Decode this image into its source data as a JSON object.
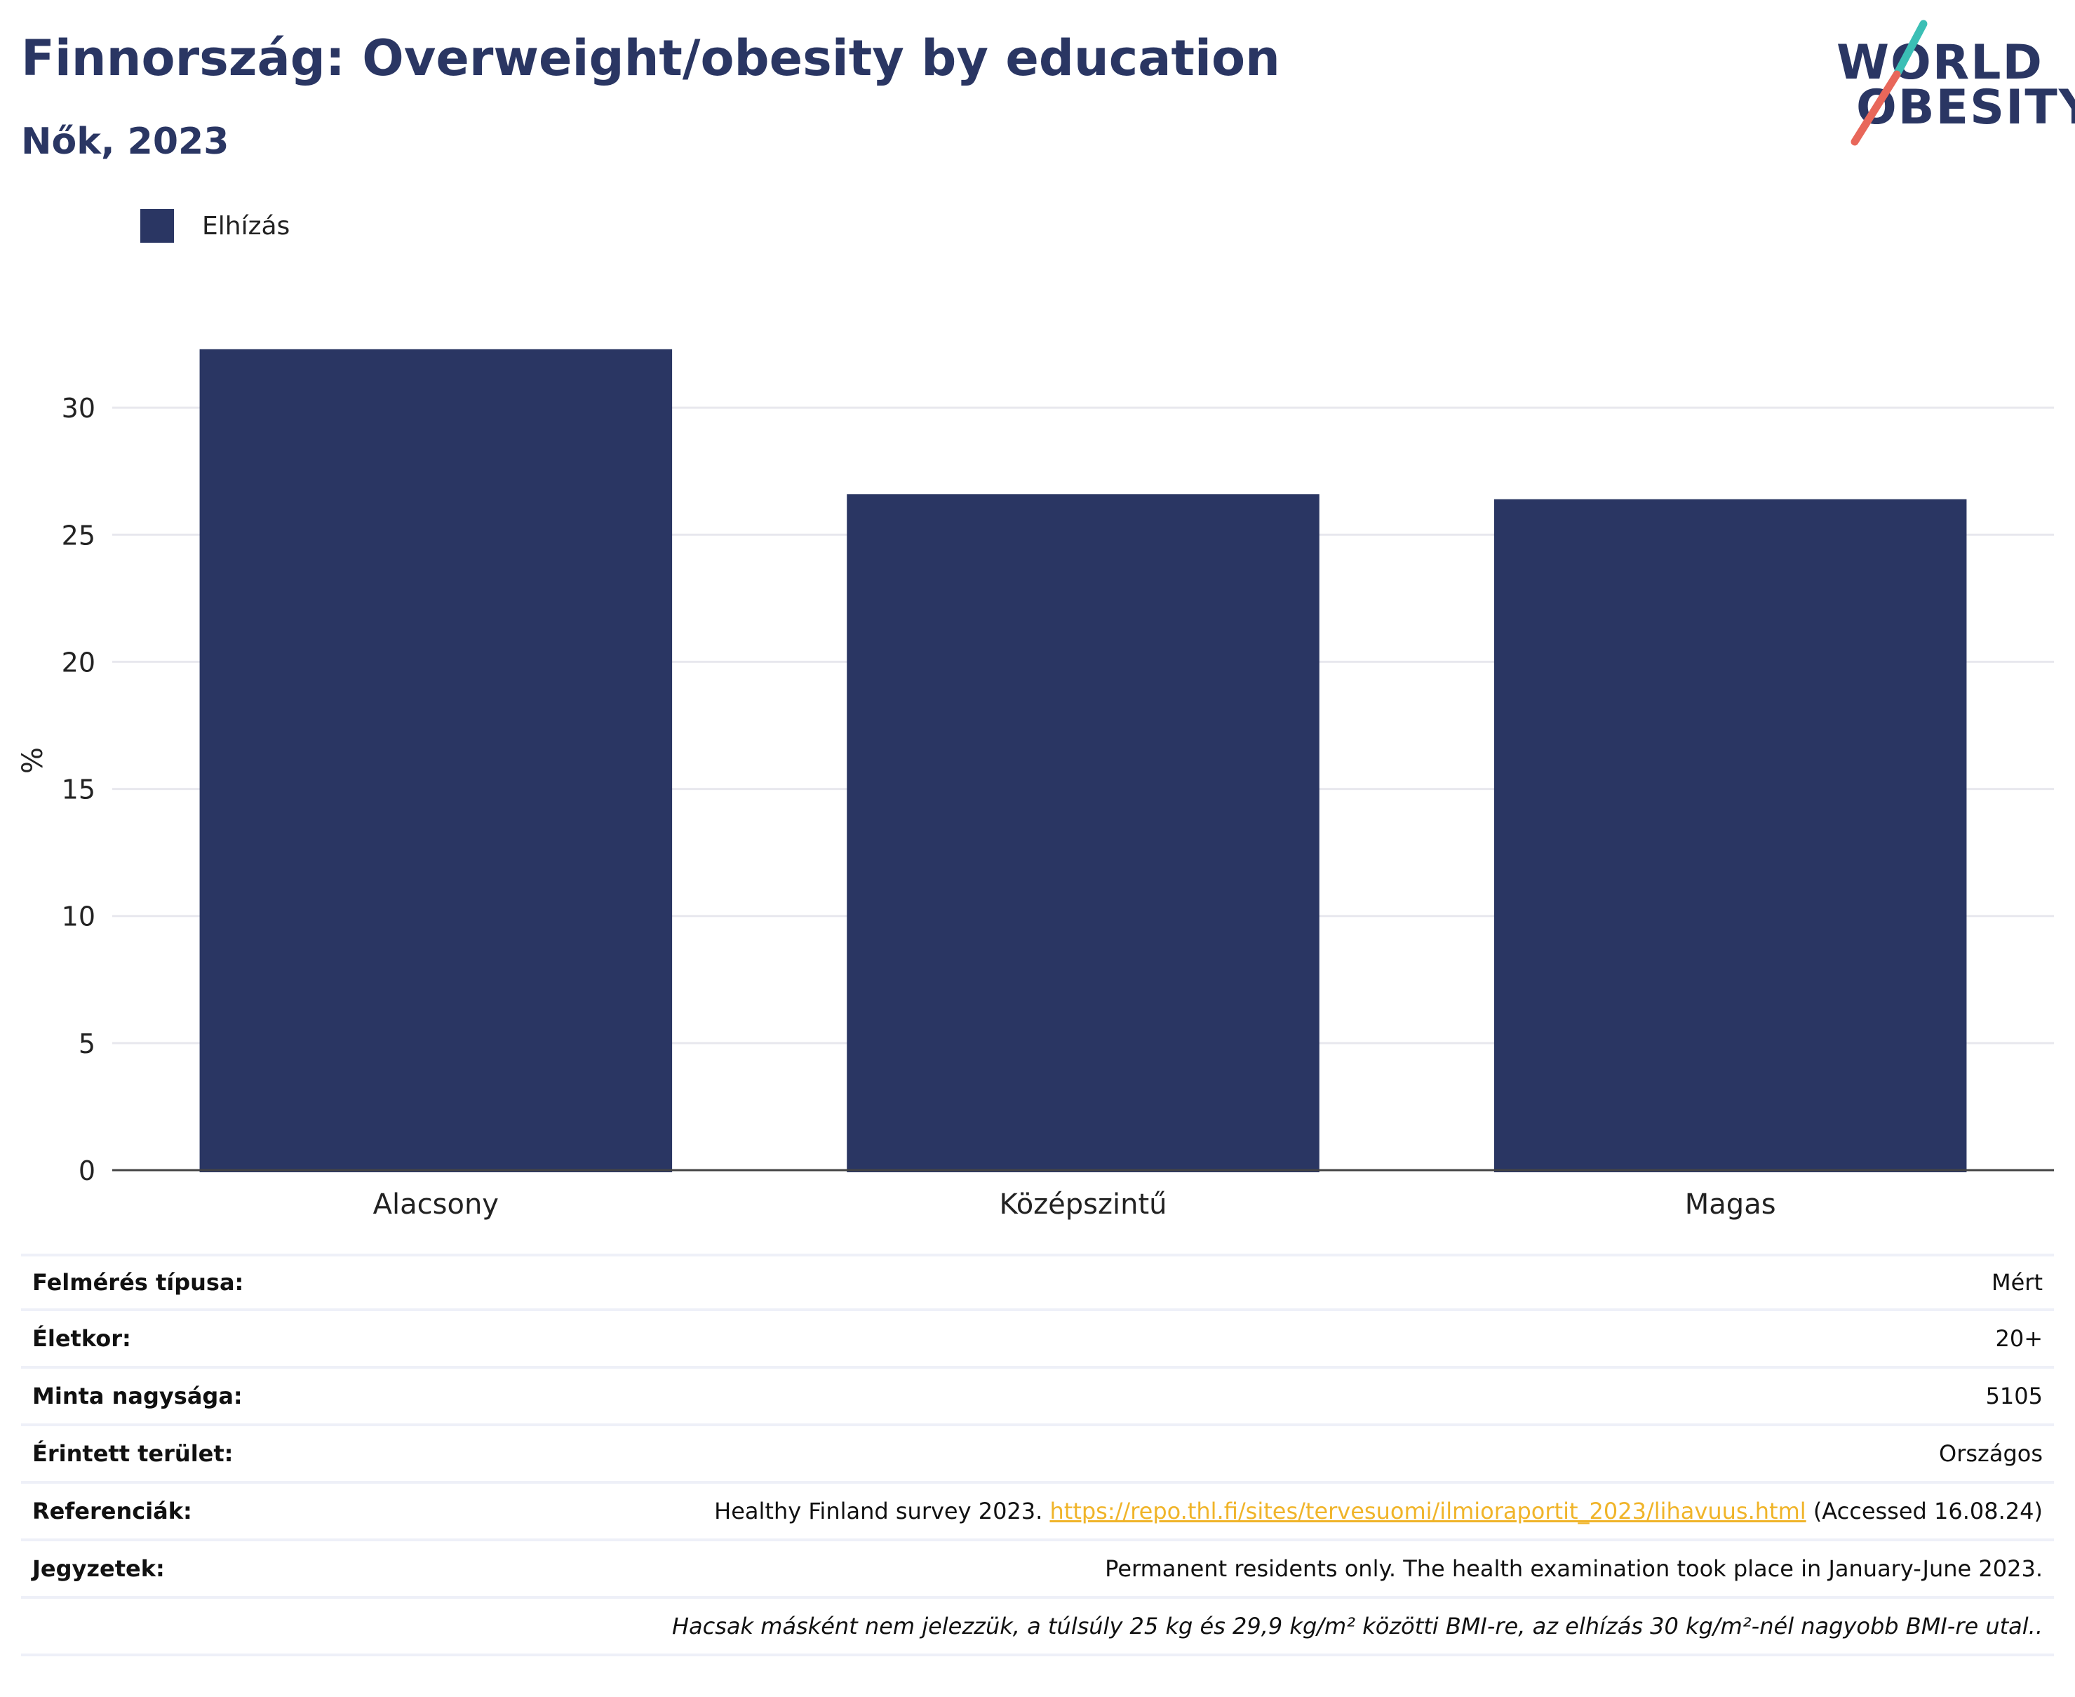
{
  "header": {
    "title": "Finnország: Overweight/obesity by education",
    "subtitle": "Nők, 2023"
  },
  "logo": {
    "line1": "WORLD",
    "line2": "OBESITY",
    "colors": {
      "text": "#2a3663",
      "slash_top": "#3bbfb5",
      "slash_bottom": "#e8675a"
    }
  },
  "legend": {
    "label": "Elhízás"
  },
  "chart_data": {
    "type": "bar",
    "categories": [
      "Alacsony",
      "Középszintű",
      "Magas"
    ],
    "series": [
      {
        "name": "Elhízás",
        "values": [
          32.3,
          26.6,
          26.4
        ],
        "color": "#2a3663"
      }
    ],
    "ylabel": "%",
    "xlabel": "",
    "ylim": [
      0,
      35
    ],
    "yticks": [
      0,
      5,
      10,
      15,
      20,
      25,
      30
    ],
    "grid": true,
    "legend_position": "top-left"
  },
  "info": {
    "rows": [
      {
        "label": "Felmérés típusa:",
        "value": "Mért"
      },
      {
        "label": "Életkor:",
        "value": "20+"
      },
      {
        "label": "Minta nagysága:",
        "value": "5105"
      },
      {
        "label": "Érintett terület:",
        "value": "Országos"
      }
    ],
    "references": {
      "label": "Referenciák:",
      "prefix": "Healthy Finland survey 2023. ",
      "link": "https://repo.thl.fi/sites/tervesuomi/ilmioraportit_2023/lihavuus.html",
      "suffix": " (Accessed 16.08.24)"
    },
    "notes": {
      "label": "Jegyzetek:",
      "value": "Permanent residents only. The health examination took place in January-June 2023."
    },
    "footnote": "Hacsak másként nem jelezzük, a túlsúly 25 kg és 29,9 kg/m² közötti BMI-re, az elhízás 30 kg/m²-nél nagyobb BMI-re utal.."
  }
}
